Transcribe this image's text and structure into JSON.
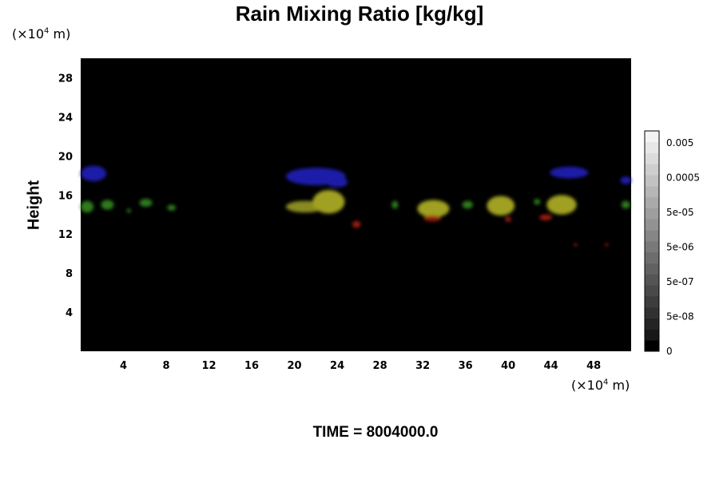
{
  "chart_data": {
    "type": "heatmap",
    "title": "Rain Mixing Ratio [kg/kg]",
    "ylabel": "Height",
    "x_unit": {
      "prefix": "(×10",
      "exp": "4",
      "suffix": " m)"
    },
    "y_unit": {
      "prefix": "(×10",
      "exp": "4",
      "suffix": " m)"
    },
    "xlim": [
      0,
      51.5
    ],
    "ylim": [
      0,
      30
    ],
    "x_ticks": [
      4,
      8,
      12,
      16,
      20,
      24,
      28,
      32,
      36,
      40,
      44,
      48
    ],
    "y_ticks": [
      4,
      8,
      12,
      16,
      20,
      24,
      28
    ],
    "colorbar": {
      "labels": [
        "0.005",
        "0.0005",
        "5e-05",
        "5e-06",
        "5e-07",
        "5e-08",
        "0"
      ]
    },
    "features": [
      {
        "color": "#1a1aa8",
        "x": 1.2,
        "y": 18.2,
        "rx": 1.2,
        "ry": 0.8
      },
      {
        "color": "#1a1aa8",
        "x": 22.0,
        "y": 17.9,
        "rx": 2.8,
        "ry": 0.9
      },
      {
        "color": "#1a1aa8",
        "x": 24.0,
        "y": 17.3,
        "rx": 1.0,
        "ry": 0.5
      },
      {
        "color": "#1a1aa8",
        "x": 45.7,
        "y": 18.3,
        "rx": 1.8,
        "ry": 0.6
      },
      {
        "color": "#1a1aa8",
        "x": 51.0,
        "y": 17.5,
        "rx": 0.5,
        "ry": 0.4
      },
      {
        "color": "#2d7a1e",
        "x": 0.6,
        "y": 14.8,
        "rx": 0.6,
        "ry": 0.6
      },
      {
        "color": "#2d7a1e",
        "x": 2.5,
        "y": 15.0,
        "rx": 0.6,
        "ry": 0.5
      },
      {
        "color": "#2d7a1e",
        "x": 4.5,
        "y": 14.4,
        "rx": 0.2,
        "ry": 0.2
      },
      {
        "color": "#2d7a1e",
        "x": 6.1,
        "y": 15.2,
        "rx": 0.6,
        "ry": 0.4
      },
      {
        "color": "#2d7a1e",
        "x": 8.5,
        "y": 14.7,
        "rx": 0.4,
        "ry": 0.3
      },
      {
        "color": "#8a8a20",
        "x": 21.0,
        "y": 14.8,
        "rx": 1.8,
        "ry": 0.6
      },
      {
        "color": "#a0a022",
        "x": 23.2,
        "y": 15.3,
        "rx": 1.5,
        "ry": 1.2
      },
      {
        "color": "#2d7a1e",
        "x": 29.4,
        "y": 15.0,
        "rx": 0.3,
        "ry": 0.4
      },
      {
        "color": "#a0a022",
        "x": 33.0,
        "y": 14.6,
        "rx": 1.5,
        "ry": 0.9
      },
      {
        "color": "#2d7a1e",
        "x": 36.2,
        "y": 15.0,
        "rx": 0.5,
        "ry": 0.4
      },
      {
        "color": "#a0a022",
        "x": 39.3,
        "y": 14.9,
        "rx": 1.3,
        "ry": 1.0
      },
      {
        "color": "#2d7a1e",
        "x": 42.7,
        "y": 15.3,
        "rx": 0.3,
        "ry": 0.3
      },
      {
        "color": "#a0a022",
        "x": 45.0,
        "y": 15.0,
        "rx": 1.4,
        "ry": 1.0
      },
      {
        "color": "#2d7a1e",
        "x": 51.0,
        "y": 15.0,
        "rx": 0.4,
        "ry": 0.4
      },
      {
        "color": "#9a1a10",
        "x": 25.8,
        "y": 13.0,
        "rx": 0.4,
        "ry": 0.35
      },
      {
        "color": "#9a1a10",
        "x": 32.9,
        "y": 13.6,
        "rx": 0.8,
        "ry": 0.3
      },
      {
        "color": "#9a1a10",
        "x": 40.0,
        "y": 13.5,
        "rx": 0.3,
        "ry": 0.25
      },
      {
        "color": "#9a1a10",
        "x": 43.5,
        "y": 13.7,
        "rx": 0.6,
        "ry": 0.3
      },
      {
        "color": "#9a1a10",
        "x": 46.3,
        "y": 10.9,
        "rx": 0.15,
        "ry": 0.15
      },
      {
        "color": "#9a1a10",
        "x": 49.2,
        "y": 10.9,
        "rx": 0.15,
        "ry": 0.15
      }
    ]
  },
  "time_label": "TIME = 8004000.0"
}
